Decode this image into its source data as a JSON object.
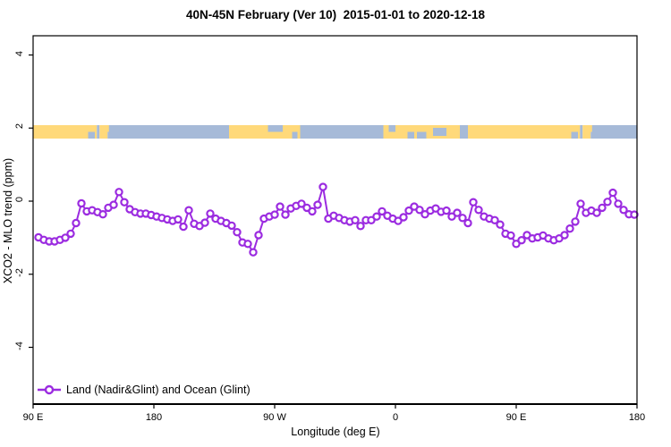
{
  "title": "40N-45N February (Ver 10)  2015-01-01 to 2020-12-18",
  "colors": {
    "series": "#9B2BE0",
    "land": "#FFD97A",
    "ocean": "#A6BAD8",
    "axis": "#000000",
    "background": "#FFFFFF"
  },
  "chart_data": {
    "type": "line",
    "title": "40N-45N February (Ver 10)  2015-01-01 to 2020-12-18",
    "xlabel": "Longitude (deg E)",
    "ylabel": "XCO2 - MLO trend (ppm)",
    "grid": false,
    "xlim": [
      90,
      540
    ],
    "ylim": [
      -5.5,
      4.5
    ],
    "x_ticks": [
      {
        "lon": 90,
        "label": "90 E"
      },
      {
        "lon": 180,
        "label": "180"
      },
      {
        "lon": 270,
        "label": "90 W"
      },
      {
        "lon": 360,
        "label": "0"
      },
      {
        "lon": 450,
        "label": "90 E"
      },
      {
        "lon": 540,
        "label": "180"
      }
    ],
    "y_ticks": [
      {
        "value": 4,
        "label": "4"
      },
      {
        "value": 2,
        "label": "2"
      },
      {
        "value": 0,
        "label": "0"
      },
      {
        "value": -2,
        "label": "-2"
      },
      {
        "value": -4,
        "label": "-4"
      }
    ],
    "legend": {
      "position": "bottom-left",
      "entries": [
        {
          "label": "Land (Nadir&Glint) and Ocean (Glint)",
          "marker": "open-circle",
          "color": "#9B2BE0"
        }
      ]
    },
    "series": [
      {
        "name": "Land (Nadir&Glint) and Ocean (Glint)",
        "x_start": 94,
        "x_step": 4,
        "values": [
          -0.99,
          -1.06,
          -1.1,
          -1.1,
          -1.06,
          -1.0,
          -0.89,
          -0.6,
          -0.06,
          -0.28,
          -0.25,
          -0.3,
          -0.36,
          -0.18,
          -0.1,
          0.25,
          -0.03,
          -0.22,
          -0.3,
          -0.34,
          -0.34,
          -0.38,
          -0.42,
          -0.46,
          -0.5,
          -0.54,
          -0.5,
          -0.7,
          -0.25,
          -0.62,
          -0.68,
          -0.59,
          -0.34,
          -0.48,
          -0.54,
          -0.6,
          -0.67,
          -0.85,
          -1.13,
          -1.17,
          -1.4,
          -0.93,
          -0.48,
          -0.42,
          -0.37,
          -0.15,
          -0.37,
          -0.2,
          -0.13,
          -0.07,
          -0.18,
          -0.28,
          -0.1,
          0.39,
          -0.48,
          -0.4,
          -0.46,
          -0.52,
          -0.56,
          -0.52,
          -0.68,
          -0.52,
          -0.52,
          -0.42,
          -0.28,
          -0.4,
          -0.48,
          -0.54,
          -0.44,
          -0.26,
          -0.15,
          -0.24,
          -0.36,
          -0.26,
          -0.2,
          -0.29,
          -0.26,
          -0.42,
          -0.32,
          -0.46,
          -0.6,
          -0.03,
          -0.24,
          -0.42,
          -0.48,
          -0.52,
          -0.64,
          -0.89,
          -0.94,
          -1.17,
          -1.07,
          -0.93,
          -1.02,
          -0.99,
          -0.94,
          -1.02,
          -1.07,
          -1.02,
          -0.93,
          -0.75,
          -0.56,
          -0.07,
          -0.32,
          -0.26,
          -0.32,
          -0.18,
          -0.02,
          0.23,
          -0.07,
          -0.24,
          -0.36,
          -0.37
        ]
      }
    ],
    "map_strip": {
      "description": "land/ocean strip for latitude band 40N-45N drawn near y=1.8 ppm",
      "land_color": "#FFD97A",
      "ocean_color": "#A6BAD8",
      "segments": [
        {
          "from": 90,
          "to": 137.5,
          "type": "land"
        },
        {
          "from": 137.5,
          "to": 139.5,
          "type": "ocean"
        },
        {
          "from": 139.5,
          "to": 145.5,
          "type": "land"
        },
        {
          "from": 145.5,
          "to": 236,
          "type": "ocean"
        },
        {
          "from": 236,
          "to": 289,
          "type": "land"
        },
        {
          "from": 289,
          "to": 351,
          "type": "ocean"
        },
        {
          "from": 351,
          "to": 408,
          "type": "land"
        },
        {
          "from": 408,
          "to": 414,
          "type": "ocean"
        },
        {
          "from": 414,
          "to": 497.5,
          "type": "land"
        },
        {
          "from": 497.5,
          "to": 499.5,
          "type": "ocean"
        },
        {
          "from": 499.5,
          "to": 505.5,
          "type": "land"
        },
        {
          "from": 505.5,
          "to": 540,
          "type": "ocean"
        }
      ],
      "patches": [
        {
          "from": 131,
          "to": 136,
          "pos": "bottom",
          "type": "ocean"
        },
        {
          "from": 144,
          "to": 146.5,
          "pos": "top",
          "type": "land"
        },
        {
          "from": 265,
          "to": 276,
          "pos": "top",
          "type": "ocean"
        },
        {
          "from": 283,
          "to": 287,
          "pos": "bottom",
          "type": "ocean"
        },
        {
          "from": 355,
          "to": 360,
          "pos": "top",
          "type": "ocean"
        },
        {
          "from": 369,
          "to": 374,
          "pos": "bottom",
          "type": "ocean"
        },
        {
          "from": 376,
          "to": 383,
          "pos": "bottom",
          "type": "ocean"
        },
        {
          "from": 388,
          "to": 398,
          "pos": "middle",
          "type": "ocean"
        },
        {
          "from": 491,
          "to": 496,
          "pos": "bottom",
          "type": "ocean"
        },
        {
          "from": 504,
          "to": 506.5,
          "pos": "top",
          "type": "land"
        }
      ]
    }
  }
}
